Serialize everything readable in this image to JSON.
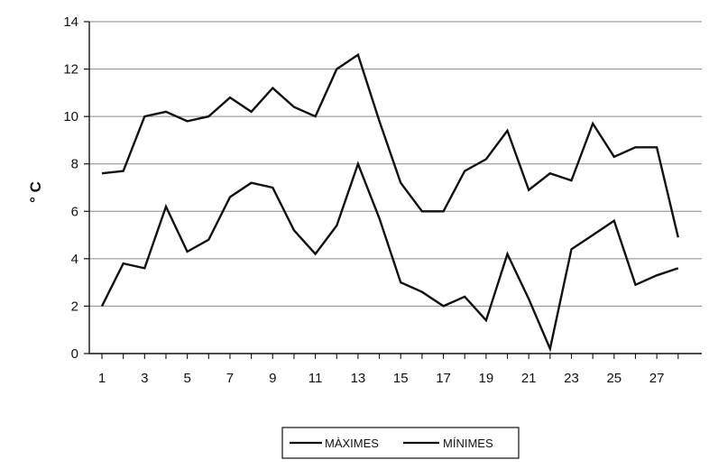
{
  "chart_data": {
    "type": "line",
    "ylabel": "° C",
    "xlabel": "",
    "ylim": [
      0,
      14
    ],
    "yticks": [
      "0",
      "2",
      "4",
      "6",
      "8",
      "10",
      "12",
      "14"
    ],
    "x": [
      1,
      2,
      3,
      4,
      5,
      6,
      7,
      8,
      9,
      10,
      11,
      12,
      13,
      14,
      15,
      16,
      17,
      18,
      19,
      20,
      21,
      22,
      23,
      24,
      25,
      26,
      27,
      28
    ],
    "xtick_labels": [
      "1",
      "3",
      "5",
      "7",
      "9",
      "11",
      "13",
      "15",
      "17",
      "19",
      "21",
      "23",
      "25",
      "27"
    ],
    "grid": "horizontal",
    "legend_position": "bottom",
    "series": [
      {
        "name": "MÀXIMES",
        "color": "#111111",
        "values": [
          7.6,
          7.7,
          10.0,
          10.2,
          9.8,
          10.0,
          10.8,
          10.2,
          11.2,
          10.4,
          10.0,
          12.0,
          12.6,
          9.8,
          7.2,
          6.0,
          6.0,
          7.7,
          8.2,
          9.4,
          6.9,
          7.6,
          7.3,
          9.7,
          8.3,
          8.7,
          8.7,
          4.9
        ]
      },
      {
        "name": "MÍNIMES",
        "color": "#111111",
        "values": [
          2.0,
          3.8,
          3.6,
          6.2,
          4.3,
          4.8,
          6.6,
          7.2,
          7.0,
          5.2,
          4.2,
          5.4,
          8.0,
          5.7,
          3.0,
          2.6,
          2.0,
          2.4,
          1.4,
          4.2,
          2.3,
          0.2,
          4.4,
          5.0,
          5.6,
          2.9,
          3.3,
          3.6
        ]
      }
    ]
  }
}
